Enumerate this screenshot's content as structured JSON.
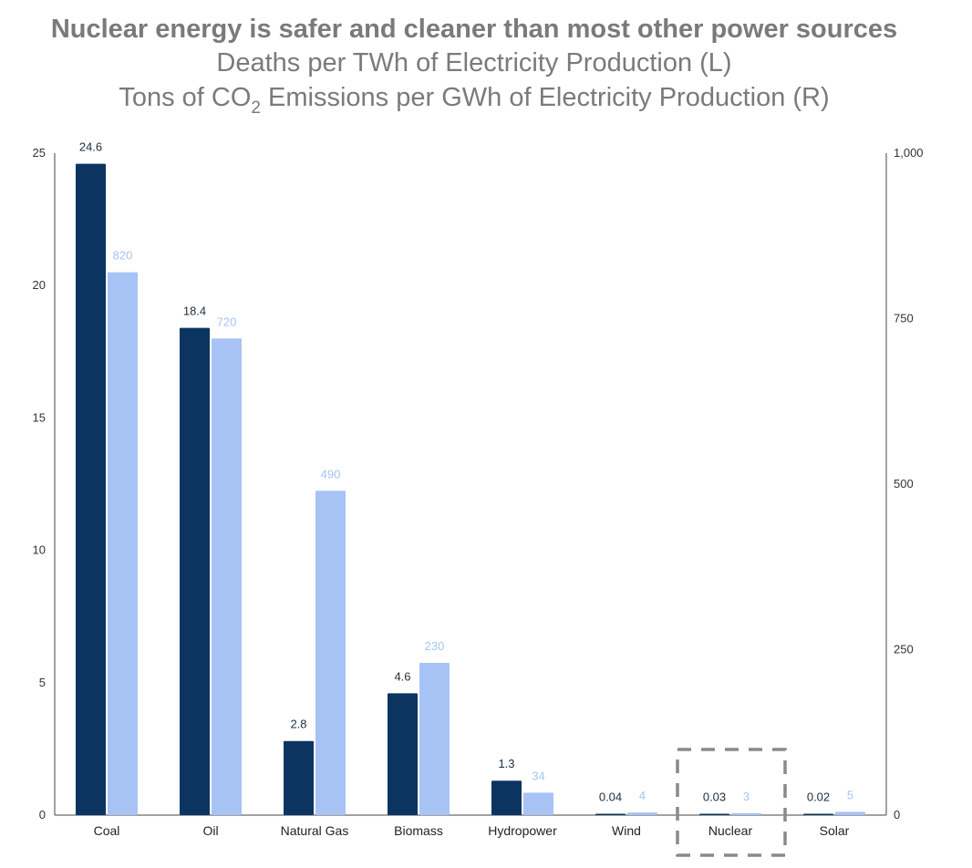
{
  "chart_data": {
    "type": "bar",
    "title": "Nuclear energy is safer and cleaner than most other power sources",
    "subtitle_1": "Deaths per TWh of Electricity Production (L)",
    "subtitle_2_before": "Tons of CO",
    "subtitle_2_sub": "2",
    "subtitle_2_after": " Emissions per GWh of Electricity Production (R)",
    "categories": [
      "Coal",
      "Oil",
      "Natural Gas",
      "Biomass",
      "Hydropower",
      "Wind",
      "Nuclear",
      "Solar"
    ],
    "series": [
      {
        "values": [
          24.6,
          18.4,
          2.8,
          4.6,
          1.3,
          0.04,
          0.03,
          0.02
        ],
        "labels": [
          "24.6",
          "18.4",
          "2.8",
          "4.6",
          "1.3",
          "0.04",
          "0.03",
          "0.02"
        ],
        "axis": "left",
        "color": "#0b3560",
        "label_color": "#1f2d3d"
      },
      {
        "values": [
          820,
          720,
          490,
          230,
          34,
          4,
          3,
          5
        ],
        "labels": [
          "820",
          "720",
          "490",
          "230",
          "34",
          "4",
          "3",
          "5"
        ],
        "axis": "right",
        "color": "#a7c3f5",
        "label_color": "#a7c3f5"
      }
    ],
    "left_axis": {
      "ylim": [
        0,
        25
      ],
      "ticks": [
        "0",
        "5",
        "10",
        "15",
        "20",
        "25"
      ],
      "tick_values": [
        0,
        5,
        10,
        15,
        20,
        25
      ]
    },
    "right_axis": {
      "ylim": [
        0,
        1000
      ],
      "ticks": [
        "0",
        "250",
        "500",
        "750",
        "1,000"
      ],
      "tick_values": [
        0,
        250,
        500,
        750,
        1000
      ]
    },
    "highlight_category": "Nuclear",
    "grid": false
  }
}
